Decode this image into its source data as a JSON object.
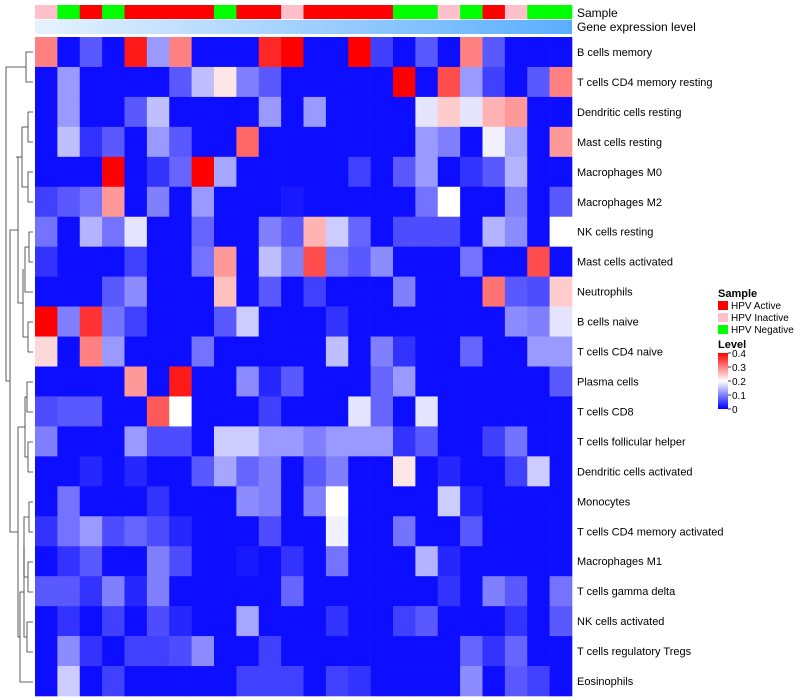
{
  "chart_data": {
    "type": "heatmap",
    "title": "",
    "annotation_titles": [
      "Sample",
      "Gene expression level"
    ],
    "sample_groups": [
      "HPV Inactive",
      "HPV Negative",
      "HPV Active",
      "HPV Negative",
      "HPV Active",
      "HPV Active",
      "HPV Active",
      "HPV Active",
      "HPV Negative",
      "HPV Active",
      "HPV Active",
      "HPV Inactive",
      "HPV Active",
      "HPV Active",
      "HPV Active",
      "HPV Active",
      "HPV Negative",
      "HPV Negative",
      "HPV Inactive",
      "HPV Negative",
      "HPV Active",
      "HPV Inactive",
      "HPV Negative",
      "HPV Negative"
    ],
    "expression_annotation": [
      0.18,
      0.2,
      0.22,
      0.24,
      0.26,
      0.28,
      0.3,
      0.32,
      0.34,
      0.36,
      0.38,
      0.4,
      0.42,
      0.44,
      0.46,
      0.48,
      0.5,
      0.52,
      0.54,
      0.56,
      0.58,
      0.6,
      0.62,
      0.64
    ],
    "rows": [
      "B cells memory",
      "T cells CD4 memory resting",
      "Dendritic cells resting",
      "Mast cells resting",
      "Macrophages M0",
      "Macrophages M2",
      "NK cells resting",
      "Mast cells activated",
      "Neutrophils",
      "B cells naive",
      "T cells CD4 naive",
      "Plasma cells",
      "T cells CD8",
      "T cells follicular helper",
      "Dendritic cells activated",
      "Monocytes",
      "T cells CD4 memory activated",
      "Macrophages M1",
      "T cells gamma delta",
      "NK cells activated",
      "T cells regulatory  Tregs",
      "Eosinophils"
    ],
    "values": [
      [
        0.3,
        0.01,
        0.07,
        0.01,
        0.38,
        0.12,
        0.3,
        0.01,
        0.01,
        0.01,
        0.37,
        0.4,
        0.01,
        0.01,
        0.4,
        0.05,
        0.01,
        0.07,
        0.01,
        0.3,
        0.07,
        0.01,
        0.01,
        0.01
      ],
      [
        0.01,
        0.12,
        0.01,
        0.01,
        0.01,
        0.01,
        0.07,
        0.15,
        0.22,
        0.1,
        0.07,
        0.01,
        0.01,
        0.01,
        0.01,
        0.01,
        0.4,
        0.01,
        0.34,
        0.12,
        0.05,
        0.01,
        0.07,
        0.3
      ],
      [
        0.01,
        0.12,
        0.01,
        0.01,
        0.07,
        0.15,
        0.01,
        0.01,
        0.01,
        0.01,
        0.12,
        0.01,
        0.12,
        0.01,
        0.01,
        0.01,
        0.01,
        0.18,
        0.24,
        0.18,
        0.26,
        0.28,
        0.01,
        0.01
      ],
      [
        0.01,
        0.15,
        0.04,
        0.07,
        0.01,
        0.12,
        0.07,
        0.01,
        0.01,
        0.32,
        0.01,
        0.01,
        0.01,
        0.01,
        0.01,
        0.01,
        0.01,
        0.12,
        0.1,
        0.01,
        0.19,
        0.13,
        0.01,
        0.28
      ],
      [
        0.01,
        0.01,
        0.01,
        0.4,
        0.01,
        0.04,
        0.08,
        0.4,
        0.13,
        0.01,
        0.01,
        0.01,
        0.01,
        0.01,
        0.05,
        0.01,
        0.07,
        0.12,
        0.01,
        0.04,
        0.07,
        0.14,
        0.01,
        0.01
      ],
      [
        0.05,
        0.07,
        0.09,
        0.28,
        0.01,
        0.1,
        0.01,
        0.12,
        0.01,
        0.01,
        0.01,
        0.02,
        0.01,
        0.01,
        0.01,
        0.01,
        0.01,
        0.09,
        0.2,
        0.01,
        0.01,
        0.1,
        0.01,
        0.07
      ],
      [
        0.09,
        0.01,
        0.14,
        0.09,
        0.18,
        0.01,
        0.01,
        0.08,
        0.01,
        0.01,
        0.1,
        0.07,
        0.26,
        0.16,
        0.08,
        0.01,
        0.06,
        0.06,
        0.06,
        0.01,
        0.14,
        0.11,
        0.01,
        0.2
      ],
      [
        0.04,
        0.01,
        0.01,
        0.01,
        0.05,
        0.01,
        0.01,
        0.09,
        0.28,
        0.01,
        0.15,
        0.1,
        0.34,
        0.09,
        0.07,
        0.11,
        0.01,
        0.01,
        0.01,
        0.09,
        0.01,
        0.01,
        0.34,
        0.01
      ],
      [
        0.01,
        0.01,
        0.01,
        0.07,
        0.11,
        0.01,
        0.01,
        0.01,
        0.25,
        0.01,
        0.07,
        0.01,
        0.05,
        0.01,
        0.01,
        0.01,
        0.1,
        0.01,
        0.01,
        0.01,
        0.31,
        0.07,
        0.06,
        0.24
      ],
      [
        0.4,
        0.1,
        0.36,
        0.09,
        0.05,
        0.01,
        0.01,
        0.01,
        0.07,
        0.16,
        0.01,
        0.01,
        0.01,
        0.04,
        0.01,
        0.01,
        0.01,
        0.01,
        0.01,
        0.01,
        0.01,
        0.11,
        0.1,
        0.18
      ],
      [
        0.23,
        0.01,
        0.3,
        0.12,
        0.01,
        0.01,
        0.01,
        0.09,
        0.01,
        0.01,
        0.01,
        0.01,
        0.01,
        0.15,
        0.01,
        0.1,
        0.04,
        0.01,
        0.01,
        0.08,
        0.01,
        0.01,
        0.12,
        0.12
      ],
      [
        0.01,
        0.01,
        0.01,
        0.01,
        0.28,
        0.01,
        0.38,
        0.01,
        0.01,
        0.11,
        0.03,
        0.07,
        0.01,
        0.01,
        0.01,
        0.08,
        0.12,
        0.01,
        0.01,
        0.01,
        0.01,
        0.01,
        0.01,
        0.07
      ],
      [
        0.06,
        0.07,
        0.07,
        0.01,
        0.01,
        0.33,
        0.2,
        0.01,
        0.01,
        0.01,
        0.05,
        0.01,
        0.01,
        0.01,
        0.18,
        0.08,
        0.01,
        0.18,
        0.01,
        0.01,
        0.01,
        0.01,
        0.01,
        0.01
      ],
      [
        0.1,
        0.01,
        0.01,
        0.01,
        0.12,
        0.06,
        0.06,
        0.01,
        0.16,
        0.16,
        0.12,
        0.12,
        0.1,
        0.12,
        0.12,
        0.12,
        0.04,
        0.07,
        0.01,
        0.01,
        0.05,
        0.09,
        0.01,
        0.01
      ],
      [
        0.01,
        0.01,
        0.03,
        0.01,
        0.03,
        0.01,
        0.01,
        0.07,
        0.13,
        0.08,
        0.1,
        0.01,
        0.07,
        0.1,
        0.01,
        0.01,
        0.22,
        0.01,
        0.03,
        0.01,
        0.01,
        0.05,
        0.16,
        0.01
      ],
      [
        0.01,
        0.09,
        0.01,
        0.01,
        0.01,
        0.04,
        0.01,
        0.01,
        0.01,
        0.11,
        0.1,
        0.01,
        0.1,
        0.2,
        0.01,
        0.01,
        0.01,
        0.01,
        0.16,
        0.03,
        0.01,
        0.01,
        0.01,
        0.01
      ],
      [
        0.04,
        0.09,
        0.12,
        0.06,
        0.08,
        0.06,
        0.03,
        0.01,
        0.01,
        0.01,
        0.06,
        0.01,
        0.01,
        0.19,
        0.01,
        0.01,
        0.09,
        0.01,
        0.01,
        0.07,
        0.01,
        0.01,
        0.01,
        0.01
      ],
      [
        0.01,
        0.04,
        0.07,
        0.01,
        0.01,
        0.1,
        0.06,
        0.01,
        0.01,
        0.02,
        0.01,
        0.04,
        0.01,
        0.09,
        0.01,
        0.01,
        0.01,
        0.14,
        0.03,
        0.01,
        0.01,
        0.01,
        0.01,
        0.01
      ],
      [
        0.07,
        0.07,
        0.04,
        0.1,
        0.03,
        0.1,
        0.01,
        0.01,
        0.01,
        0.01,
        0.01,
        0.08,
        0.01,
        0.01,
        0.01,
        0.01,
        0.01,
        0.01,
        0.04,
        0.01,
        0.1,
        0.07,
        0.01,
        0.09
      ],
      [
        0.01,
        0.04,
        0.01,
        0.05,
        0.01,
        0.06,
        0.03,
        0.01,
        0.01,
        0.13,
        0.01,
        0.01,
        0.01,
        0.04,
        0.01,
        0.01,
        0.05,
        0.07,
        0.01,
        0.01,
        0.01,
        0.04,
        0.01,
        0.07
      ],
      [
        0.01,
        0.11,
        0.04,
        0.01,
        0.05,
        0.05,
        0.06,
        0.11,
        0.01,
        0.01,
        0.05,
        0.01,
        0.01,
        0.01,
        0.01,
        0.01,
        0.01,
        0.01,
        0.01,
        0.08,
        0.04,
        0.08,
        0.01,
        0.01
      ],
      [
        0.01,
        0.16,
        0.01,
        0.05,
        0.01,
        0.01,
        0.01,
        0.01,
        0.01,
        0.05,
        0.05,
        0.05,
        0.01,
        0.05,
        0.04,
        0.01,
        0.01,
        0.01,
        0.01,
        0.11,
        0.01,
        0.07,
        0.05,
        0.01
      ]
    ],
    "color_scale": {
      "min": 0,
      "mid": 0.2,
      "max": 0.4,
      "low": "#0000ff",
      "midColor": "#ffffff",
      "high": "#ff0000"
    },
    "legend": {
      "sample_title": "Sample",
      "sample_items": [
        {
          "label": "HPV Active",
          "color": "#ff0000"
        },
        {
          "label": "HPV Inactive",
          "color": "#ffc0cb"
        },
        {
          "label": "HPV Negative",
          "color": "#00ff00"
        }
      ],
      "level_title": "Level",
      "level_ticks": [
        {
          "value": 0.4,
          "label": "0.4"
        },
        {
          "value": 0.3,
          "label": "0.3"
        },
        {
          "value": 0.2,
          "label": "0.2"
        },
        {
          "value": 0.1,
          "label": "0.1"
        },
        {
          "value": 0,
          "label": "0"
        }
      ]
    }
  }
}
